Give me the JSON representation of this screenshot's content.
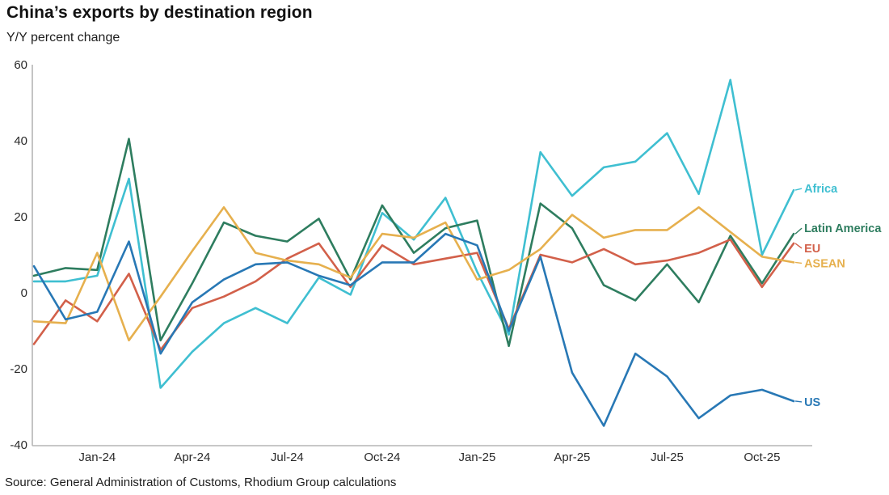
{
  "header": {
    "title": "China’s exports by destination region",
    "subtitle": "Y/Y percent change"
  },
  "footer": {
    "source": "Source: General Administration of Customs, Rhodium Group calculations"
  },
  "chart_data": {
    "type": "line",
    "title": "China’s exports by destination region",
    "subtitle": "Y/Y percent change",
    "x": [
      "Nov-23",
      "Dec-23",
      "Jan-24",
      "Feb-24",
      "Mar-24",
      "Apr-24",
      "May-24",
      "Jun-24",
      "Jul-24",
      "Aug-24",
      "Sep-24",
      "Oct-24",
      "Nov-24",
      "Dec-24",
      "Jan-25",
      "Feb-25",
      "Mar-25",
      "Apr-25",
      "May-25",
      "Jun-25",
      "Jul-25",
      "Aug-25",
      "Sep-25",
      "Oct-25",
      "Nov-25"
    ],
    "x_axis_labels": [
      "Jan-24",
      "Apr-24",
      "Jul-24",
      "Oct-24",
      "Jan-25",
      "Apr-25",
      "Jul-25",
      "Oct-25"
    ],
    "yticks": [
      60,
      40,
      20,
      0,
      -20,
      -40
    ],
    "ylim": [
      -40,
      60
    ],
    "grid": false,
    "legend_position": "right-end-labels",
    "axis_color": "#b5b5b5",
    "series": [
      {
        "name": "Africa",
        "color": "#3fbfd1",
        "values": [
          3,
          3,
          4.5,
          30,
          -25,
          -15.5,
          -8,
          -4,
          -8,
          4,
          -0.5,
          21,
          14,
          25,
          5.5,
          -11,
          37,
          25.5,
          33,
          34.5,
          42,
          26,
          56,
          10,
          27
        ]
      },
      {
        "name": "Latin America",
        "color": "#2e7d5f",
        "values": [
          4.5,
          6.5,
          6,
          40.5,
          -12.5,
          2.5,
          18.5,
          15,
          13.5,
          19.5,
          3.5,
          23,
          10.5,
          17,
          19,
          -14,
          23.5,
          17,
          2,
          -2,
          7.5,
          -2.5,
          15,
          2.5,
          15.5
        ]
      },
      {
        "name": "EU",
        "color": "#d2604a",
        "values": [
          -13.5,
          -2,
          -7.5,
          5,
          -15,
          -4,
          -1,
          3,
          9,
          13,
          1.5,
          12.5,
          7.5,
          9,
          10.5,
          -9.5,
          10,
          8,
          11.5,
          7.5,
          8.5,
          10.5,
          14,
          1.5,
          13
        ]
      },
      {
        "name": "ASEAN",
        "color": "#e6b04e",
        "values": [
          -7.5,
          -8,
          10.5,
          -12.5,
          -1,
          11,
          22.5,
          10.5,
          8.5,
          7.5,
          4,
          15.5,
          14.5,
          18.5,
          3.5,
          6,
          11.5,
          20.5,
          14.5,
          16.5,
          16.5,
          22.5,
          16,
          9.5,
          8
        ]
      },
      {
        "name": "US",
        "color": "#2878b5",
        "values": [
          7,
          -7,
          -5,
          13.5,
          -16,
          -2.5,
          3.5,
          7.5,
          8,
          4.5,
          2,
          8,
          8,
          15.5,
          12.5,
          -10,
          9.5,
          -21,
          -35,
          -16,
          -22,
          -33,
          -27,
          -25.5,
          -28.5
        ]
      }
    ]
  }
}
